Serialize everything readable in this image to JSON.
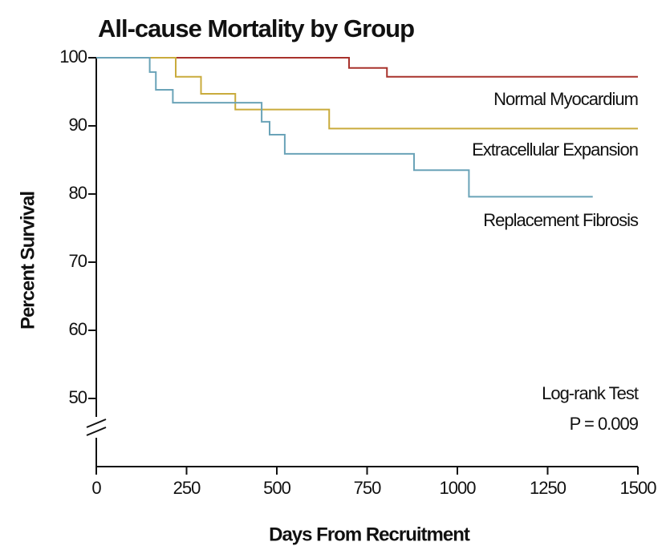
{
  "chart_data": {
    "type": "step",
    "title": "All-cause Mortality by Group",
    "xlabel": "Days From Recruitment",
    "ylabel": "Percent Survival",
    "xlim": [
      0,
      1500
    ],
    "xticks": [
      0,
      250,
      500,
      750,
      1000,
      1250,
      1500
    ],
    "ylim": [
      40,
      100
    ],
    "yticks": [
      50,
      60,
      70,
      80,
      90,
      100
    ],
    "annotations": [
      "Log-rank Test",
      "P = 0.009"
    ],
    "series": [
      {
        "name": "Normal Myocardium",
        "color": "#a8322c",
        "x": [
          0,
          700,
          805,
          1500
        ],
        "values": [
          100,
          98.5,
          97.2,
          97.2
        ]
      },
      {
        "name": "Extracellular Expansion",
        "color": "#c9ab3c",
        "x": [
          0,
          220,
          290,
          385,
          645,
          1500
        ],
        "values": [
          100,
          97.2,
          94.7,
          92.4,
          89.6,
          89.6
        ]
      },
      {
        "name": "Replacement Fibrosis",
        "color": "#6aa3b8",
        "x": [
          0,
          148,
          165,
          212,
          458,
          480,
          522,
          880,
          1032,
          1375
        ],
        "values": [
          100,
          97.9,
          95.3,
          93.4,
          90.6,
          88.7,
          85.9,
          83.5,
          79.6,
          79.6
        ]
      }
    ]
  }
}
